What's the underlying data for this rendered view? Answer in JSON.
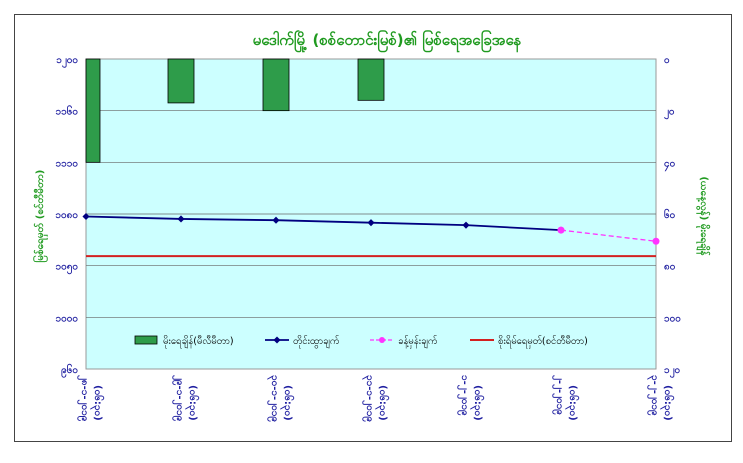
{
  "chart_data": {
    "type": "bar+line",
    "title": "မဒေါက်မြို့ (စစ်တောင်းမြစ်)၏ မြစ်ရေအခြေအနေ",
    "ylabel_left": "မြစ်ရေမှတ် (စင်တီမီတာ)",
    "ylabel_right": "(ယနေ့လွန်) မိုးရေချိန်",
    "left_axis": {
      "ylim": [
        950,
        1200
      ],
      "ticks": [
        "၉၆၀",
        "၁၀၀၀",
        "၁၀၅၀",
        "၁၀၈၀",
        "၁၁၁၀",
        "၁၁၆၀",
        "၁၂၀၀"
      ]
    },
    "right_axis": {
      "ylim": [
        0,
        120
      ],
      "inverted": true,
      "ticks": [
        "၀",
        "၂၀",
        "၄၀",
        "၆၀",
        "၈၀",
        "၁၀၀",
        "၁၂၀"
      ]
    },
    "x_labels": [
      [
        "၂၈-၁-၂၀၁၉",
        "(၀၆:၃၀)"
      ],
      [
        "၂၉-၁-၂၀၁၉",
        "(၀၆:၃၀)"
      ],
      [
        "၃၀-၁-၂၀၁၉",
        "(၀၆:၃၀)"
      ],
      [
        "၃၁-၁-၂၀၁၉",
        "(၀၆:၃၀)"
      ],
      [
        "၁-၂-၂၀၁၉",
        "(၀၆:၃၀)"
      ],
      [
        "၂-၂-၂၀၁၉",
        "(၀၆:၃၀)"
      ],
      [
        "၃-၂-၂၀၁၉",
        "(၀၆:၃၀)"
      ]
    ],
    "series": [
      {
        "name": "မိုးရေချိန်(မီလီမီတာ)",
        "kind": "bar",
        "axis": "right",
        "color": "#2e9c4a",
        "values": [
          40,
          17,
          20,
          16,
          null,
          null,
          null
        ]
      },
      {
        "name": "တိုင်းထွာချက်",
        "kind": "line",
        "axis": "left",
        "color": "#000080",
        "values": [
          1073,
          1071,
          1070,
          1068,
          1066,
          1062,
          null
        ]
      },
      {
        "name": "ခန့်မှန်းချက်",
        "kind": "dashed-line",
        "axis": "left",
        "color": "#ff33ff",
        "values": [
          null,
          null,
          null,
          null,
          null,
          1062,
          1053
        ]
      },
      {
        "name": "စိုးရိမ်ရေမှတ်(စင်တီမီတာ)",
        "kind": "hline",
        "axis": "left",
        "color": "#d32020",
        "value": 1041
      }
    ]
  }
}
